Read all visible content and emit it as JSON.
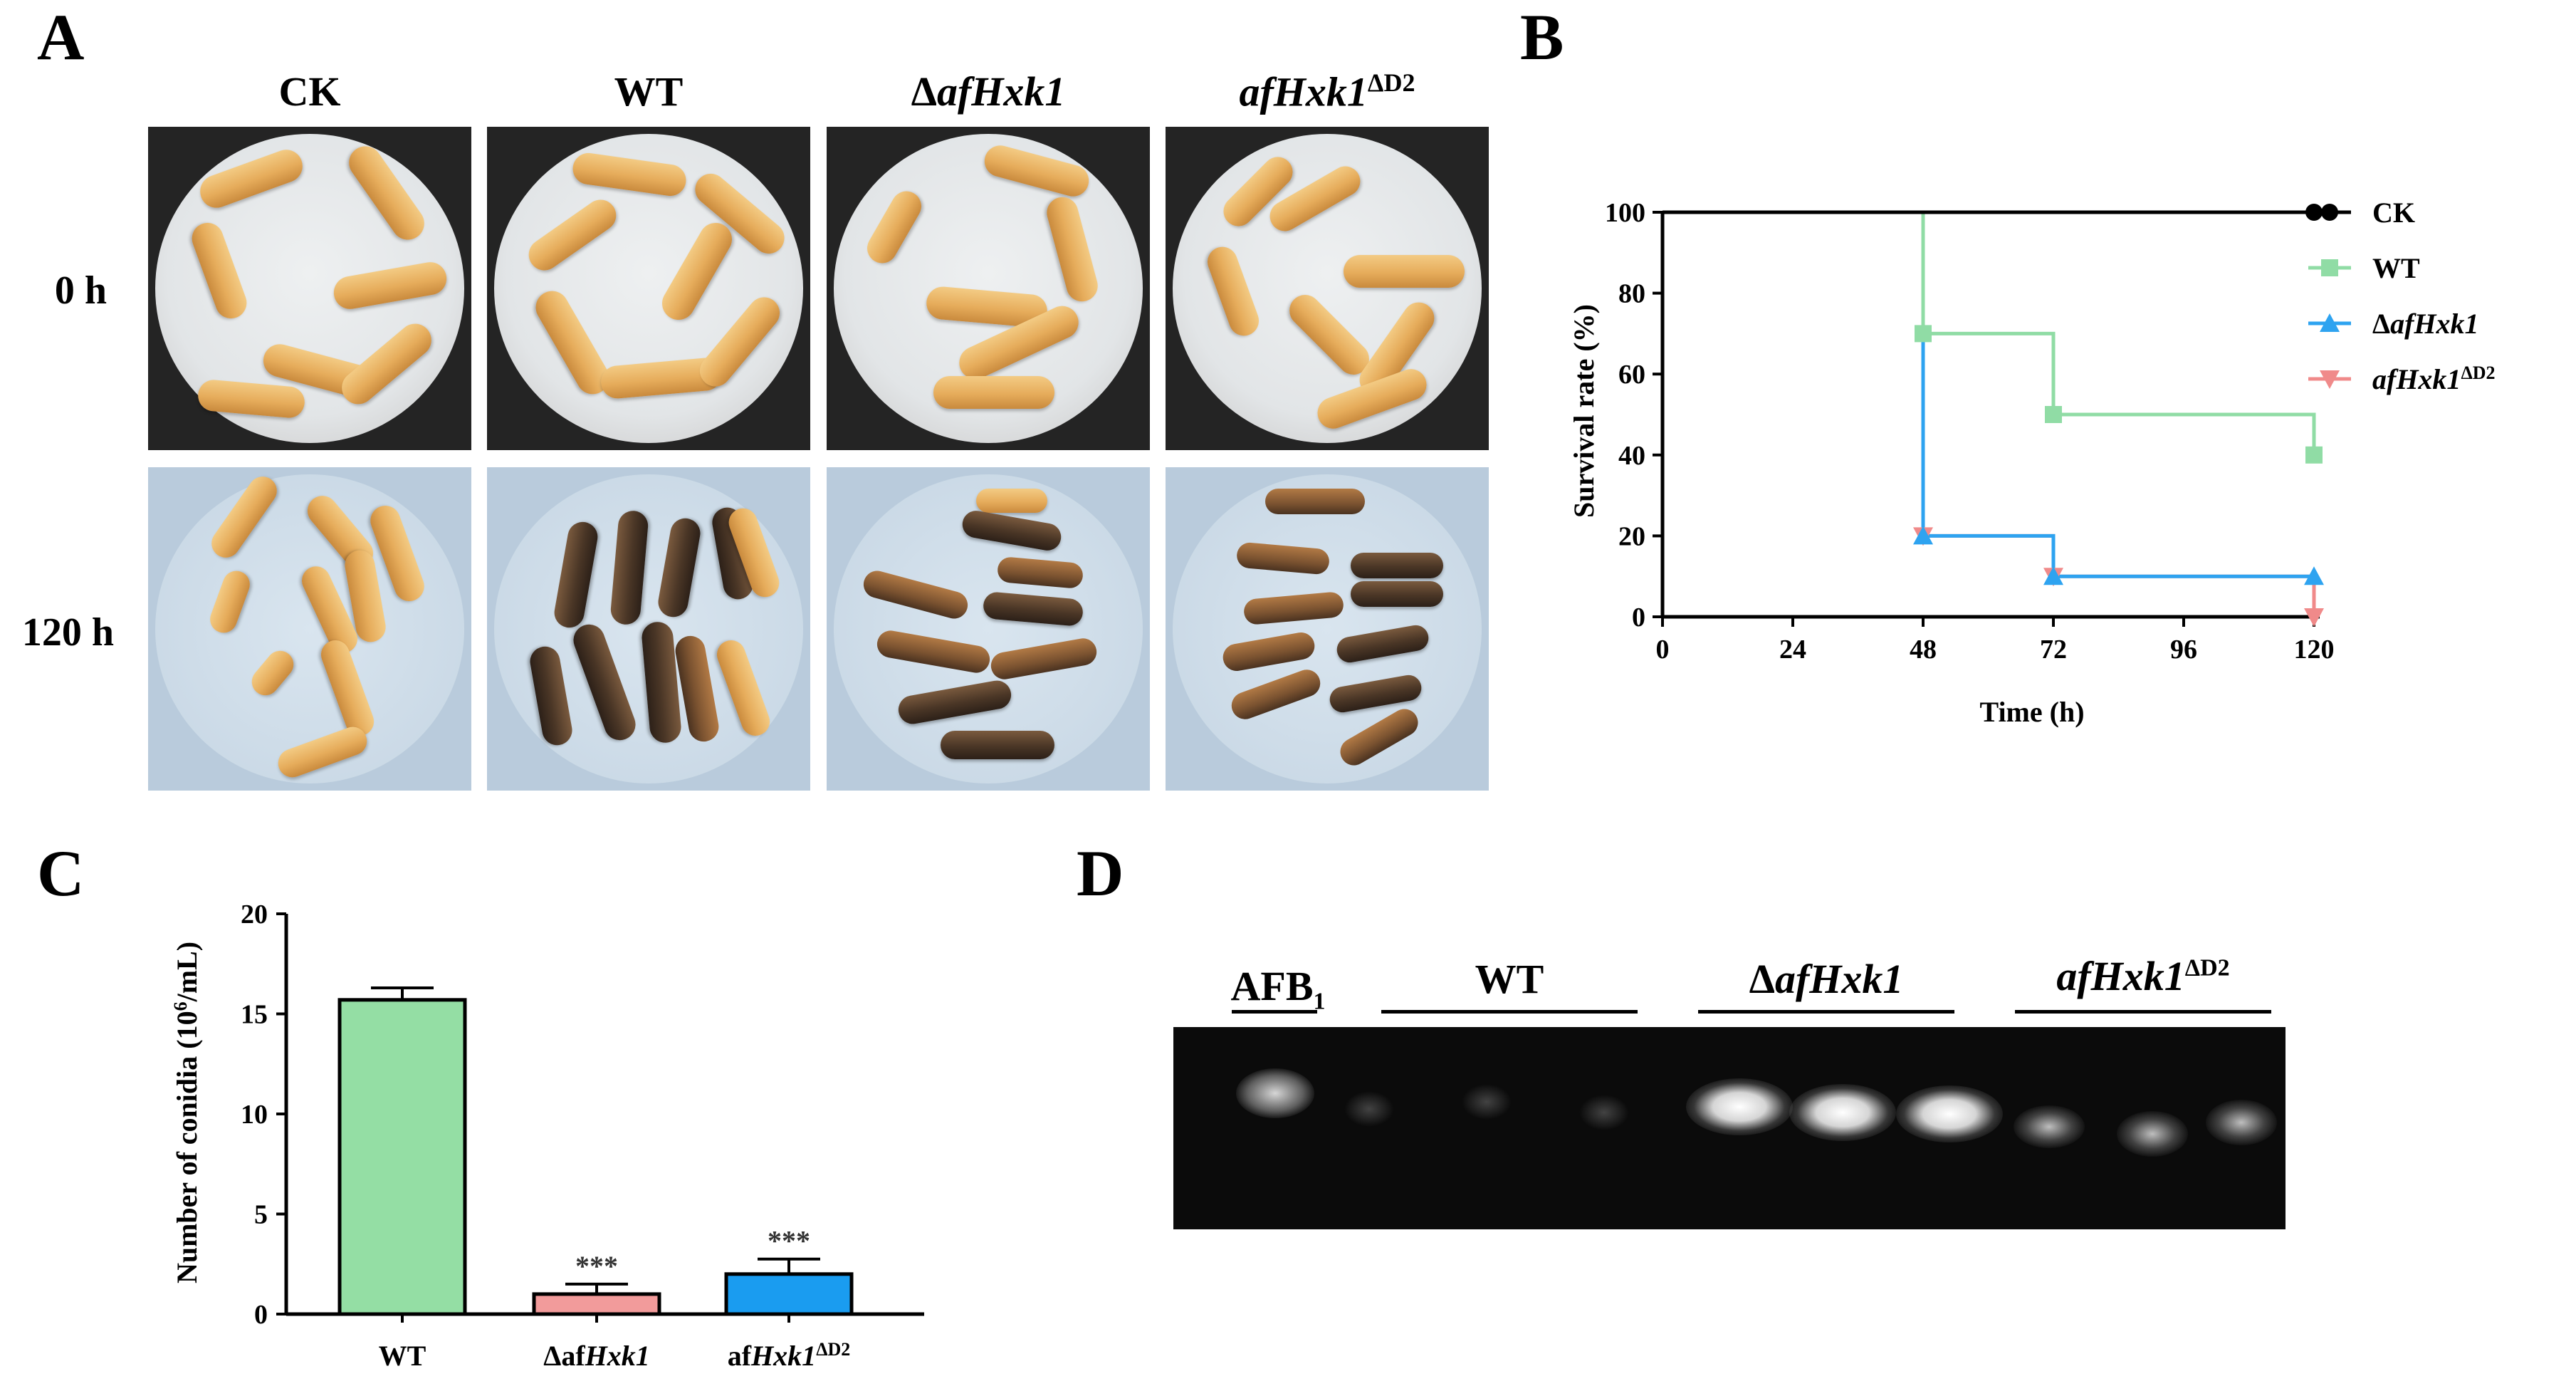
{
  "panels": {
    "a": "A",
    "b": "B",
    "c": "C",
    "d": "D"
  },
  "panel_a": {
    "columns": [
      "CK",
      "WT",
      "ΔafHxk1",
      "afHxk1ΔD2"
    ],
    "rows": [
      "0 h",
      "120 h"
    ]
  },
  "panel_d": {
    "lanes": [
      "AFB1",
      "WT",
      "ΔafHxk1",
      "afHxk1ΔD2"
    ]
  },
  "colors": {
    "ck": "#000000",
    "wt": "#90dca5",
    "mutant": "#2ea3f0",
    "complement": "#f08a8a",
    "bar_wt": "#94dea4",
    "bar_mutant": "#f29b9b",
    "bar_complement": "#1a9cf0"
  },
  "chart_data": [
    {
      "type": "line",
      "panel": "B",
      "xlabel": "Time (h)",
      "ylabel": "Survival rate (%)",
      "xlim": [
        0,
        120
      ],
      "ylim": [
        0,
        100
      ],
      "xticks": [
        0,
        24,
        48,
        72,
        96,
        120
      ],
      "yticks": [
        0,
        20,
        40,
        60,
        80,
        100
      ],
      "step": true,
      "legend_position": "right",
      "series": [
        {
          "name": "CK",
          "marker": "circle",
          "x": [
            0,
            120
          ],
          "y": [
            100,
            100
          ]
        },
        {
          "name": "WT",
          "marker": "square",
          "x": [
            0,
            48,
            72,
            120
          ],
          "y": [
            100,
            70,
            50,
            40
          ]
        },
        {
          "name": "ΔafHxk1",
          "marker": "triangle-up",
          "x": [
            0,
            48,
            72,
            120
          ],
          "y": [
            100,
            20,
            10,
            10
          ]
        },
        {
          "name": "afHxk1ΔD2",
          "marker": "triangle-down",
          "x": [
            0,
            48,
            72,
            120
          ],
          "y": [
            100,
            20,
            10,
            0
          ]
        }
      ]
    },
    {
      "type": "bar",
      "panel": "C",
      "ylabel": "Number of conidia (106/mL)",
      "ylim": [
        0,
        20
      ],
      "yticks": [
        0,
        5,
        10,
        15,
        20
      ],
      "categories": [
        "WT",
        "ΔafHxk1",
        "afHxk1ΔD2"
      ],
      "values": [
        15.7,
        1.0,
        2.0
      ],
      "errors": [
        0.6,
        0.5,
        0.75
      ],
      "annotations": [
        "",
        "***",
        "***"
      ]
    }
  ]
}
